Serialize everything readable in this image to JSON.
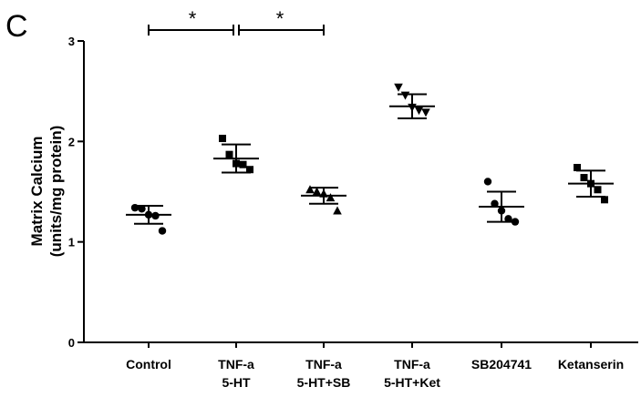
{
  "chart_data": {
    "panel_label": "C",
    "type": "scatter",
    "ylabel_lines": [
      "Matrix Calcium",
      "(units/mg protein)"
    ],
    "ylim": [
      0,
      3
    ],
    "yticks": [
      "0",
      "1",
      "2",
      "3"
    ],
    "categories": [
      {
        "lines": [
          "Control",
          ""
        ]
      },
      {
        "lines": [
          "TNF-a",
          "5-HT"
        ]
      },
      {
        "lines": [
          "TNF-a",
          "5-HT+SB"
        ]
      },
      {
        "lines": [
          "TNF-a",
          "5-HT+Ket"
        ]
      },
      {
        "lines": [
          "SB204741",
          ""
        ]
      },
      {
        "lines": [
          "Ketanserin",
          ""
        ]
      }
    ],
    "groups": [
      {
        "marker": "circle",
        "mean": 1.27,
        "sd": 0.09,
        "points": [
          1.34,
          1.33,
          1.27,
          1.26,
          1.11
        ]
      },
      {
        "marker": "square",
        "mean": 1.83,
        "sd": 0.14,
        "points": [
          2.03,
          1.87,
          1.78,
          1.77,
          1.72
        ]
      },
      {
        "marker": "triangle-up",
        "mean": 1.46,
        "sd": 0.08,
        "points": [
          1.52,
          1.5,
          1.48,
          1.44,
          1.31
        ]
      },
      {
        "marker": "triangle-down",
        "mean": 2.35,
        "sd": 0.12,
        "points": [
          2.54,
          2.46,
          2.34,
          2.31,
          2.29
        ]
      },
      {
        "marker": "circle",
        "mean": 1.35,
        "sd": 0.15,
        "points": [
          1.6,
          1.38,
          1.31,
          1.23,
          1.2
        ]
      },
      {
        "marker": "square",
        "mean": 1.58,
        "sd": 0.13,
        "points": [
          1.74,
          1.64,
          1.58,
          1.52,
          1.42
        ]
      }
    ],
    "significance": [
      {
        "from": 0,
        "to": 1,
        "label": "*"
      },
      {
        "from": 1,
        "to": 2,
        "label": "*"
      }
    ]
  }
}
